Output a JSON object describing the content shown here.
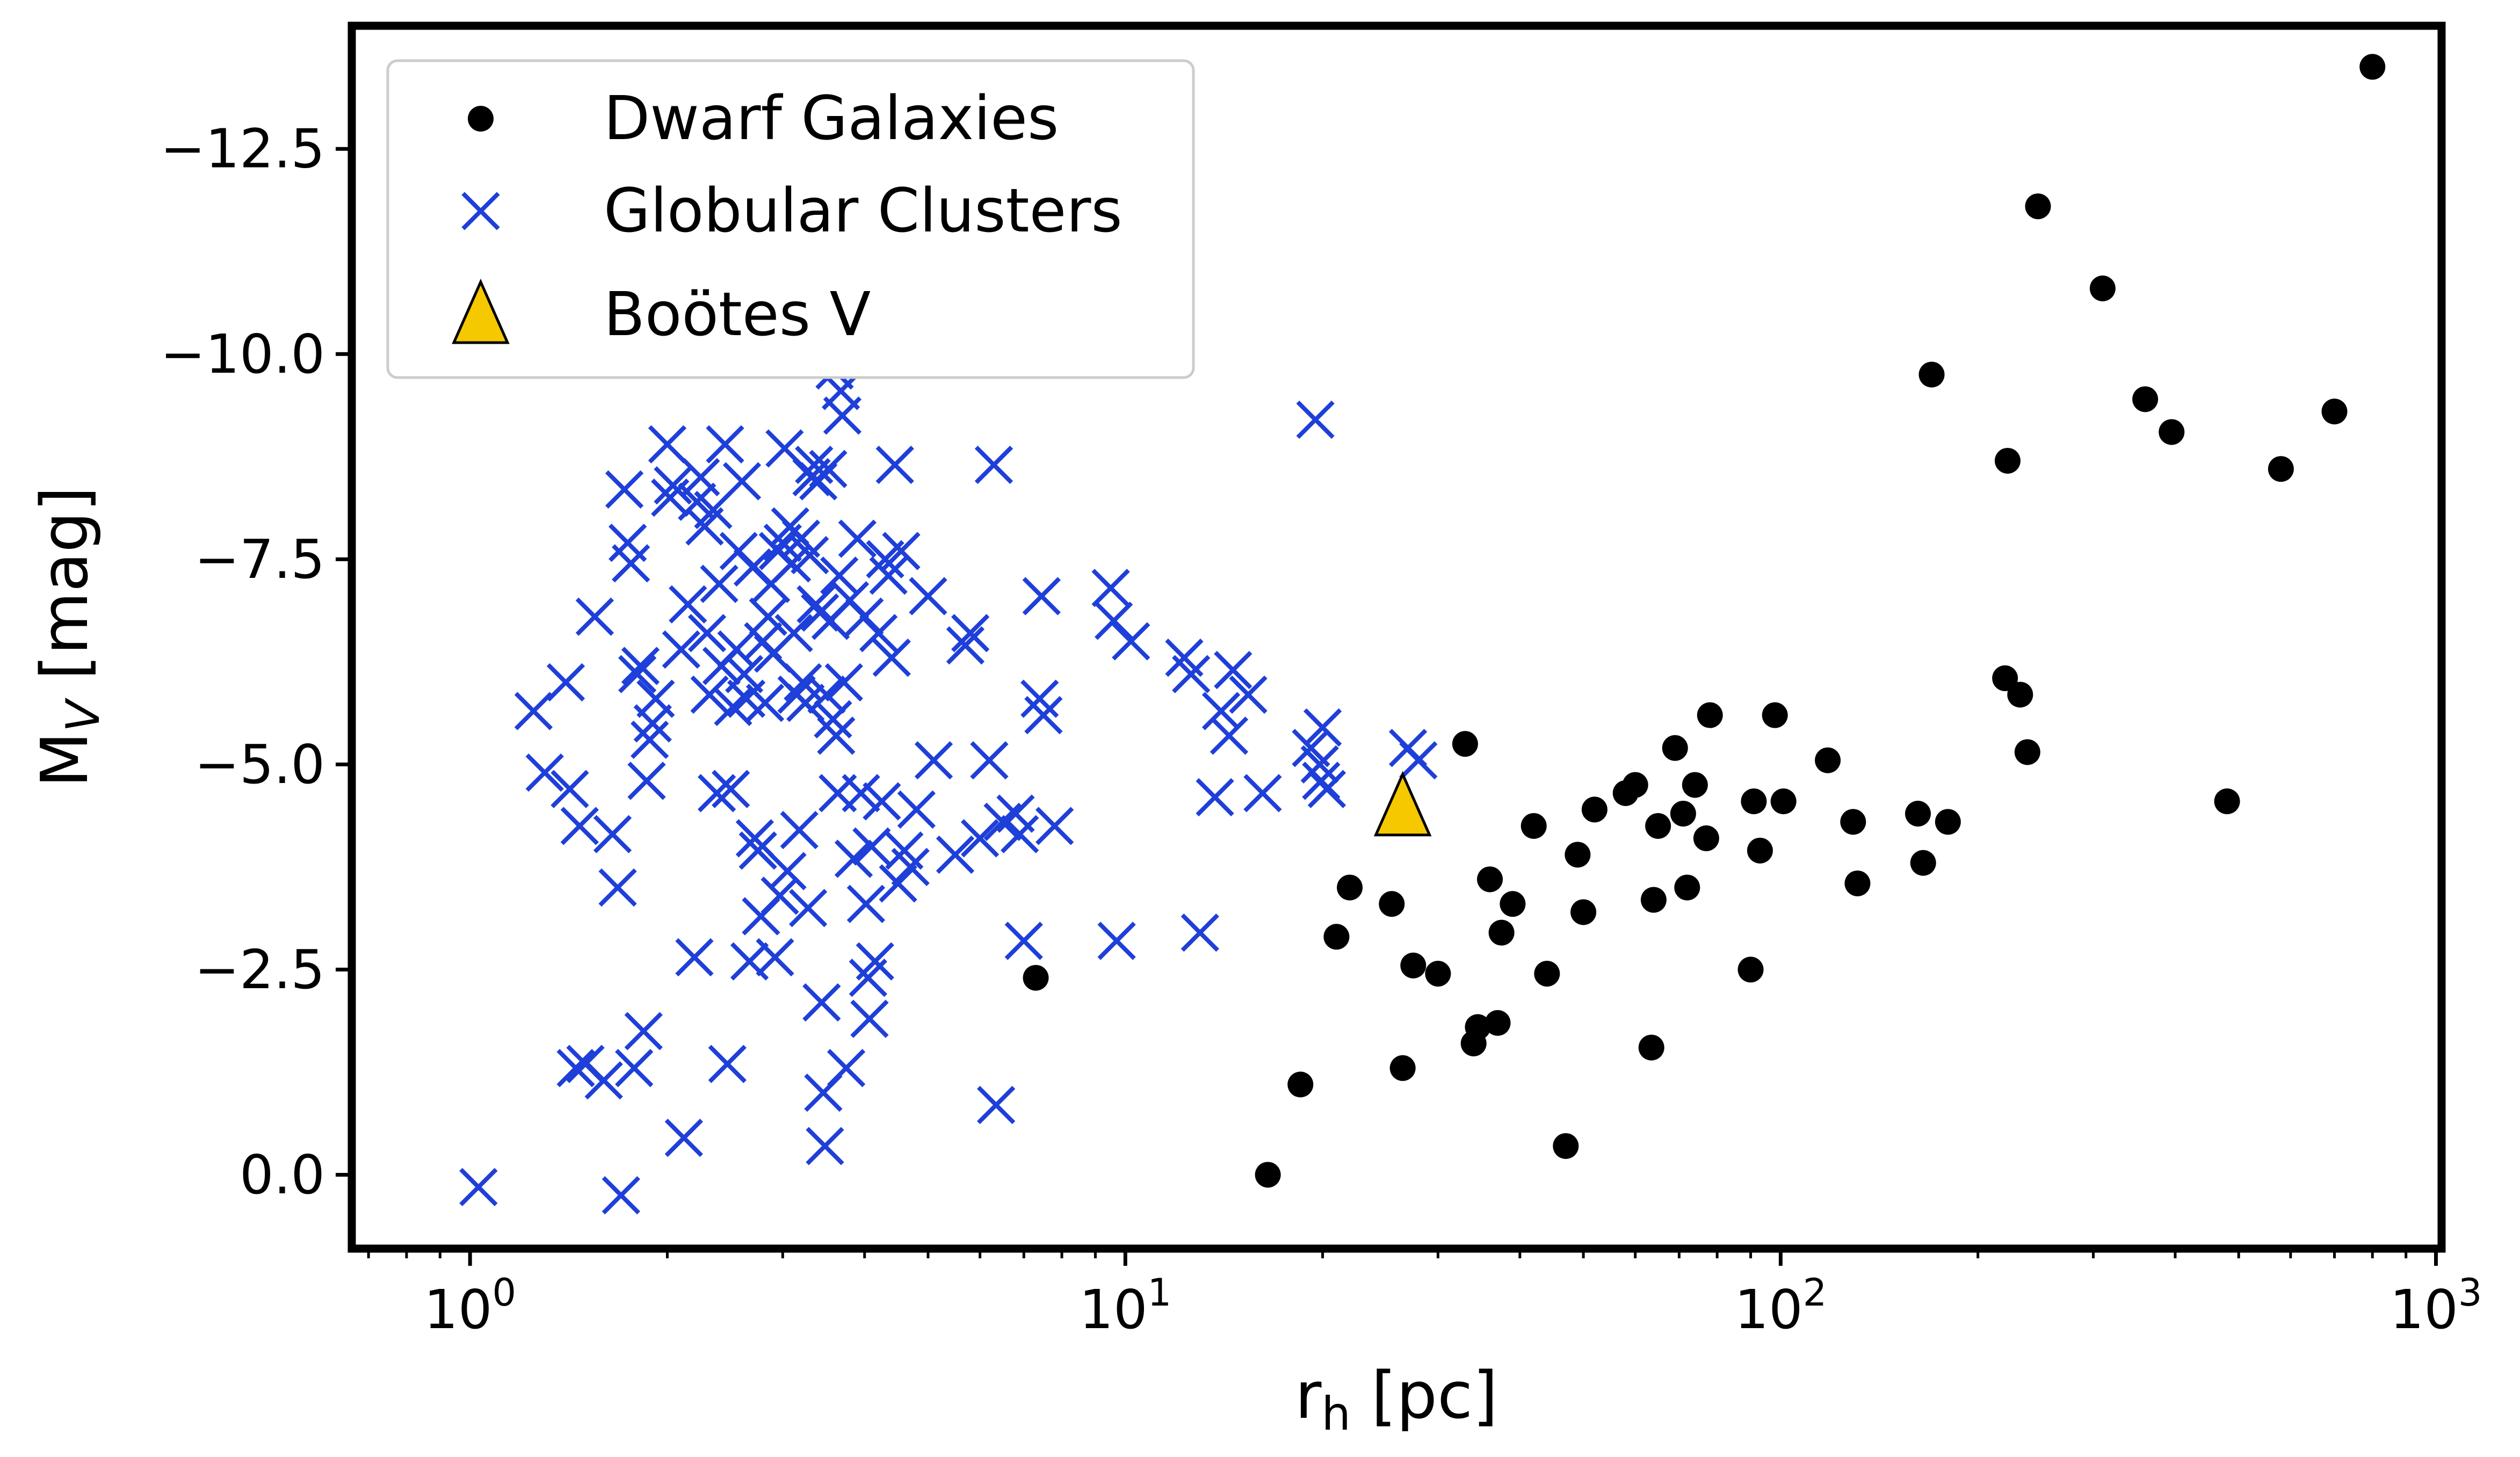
{
  "chart_data": {
    "type": "scatter",
    "title": "",
    "xlabel": "r",
    "xlabel_sub": "h",
    "xlabel_unit": " [pc]",
    "ylabel": "M",
    "ylabel_sub": "V",
    "ylabel_unit": " [mag]",
    "xscale": "log",
    "xlim": [
      0.66,
      1020
    ],
    "ylim": [
      0.9,
      -14.0
    ],
    "y_inverted": true,
    "xticks": [
      {
        "value": 1,
        "base": "10",
        "exp": "0"
      },
      {
        "value": 10,
        "base": "10",
        "exp": "1"
      },
      {
        "value": 100,
        "base": "10",
        "exp": "2"
      },
      {
        "value": 1000,
        "base": "10",
        "exp": "3"
      }
    ],
    "yticks": [
      {
        "value": -12.5,
        "label": "−12.5"
      },
      {
        "value": -10.0,
        "label": "−10.0"
      },
      {
        "value": -7.5,
        "label": "−7.5"
      },
      {
        "value": -5.0,
        "label": "−5.0"
      },
      {
        "value": -2.5,
        "label": "−2.5"
      },
      {
        "value": 0.0,
        "label": "0.0"
      }
    ],
    "grid": false,
    "legend_position": "top-left",
    "colors": {
      "dwarf": "#000000",
      "globular": "#1f3fd9",
      "bootes": "#f5c800",
      "axes": "#000000"
    },
    "series": [
      {
        "name": "Dwarf Galaxies",
        "marker": "circle",
        "points": [
          [
            7.3,
            -2.4
          ],
          [
            16.5,
            0.0
          ],
          [
            18.5,
            -1.1
          ],
          [
            21,
            -2.9
          ],
          [
            22,
            -3.5
          ],
          [
            25.5,
            -3.3
          ],
          [
            26.5,
            -1.3
          ],
          [
            27.5,
            -2.55
          ],
          [
            30,
            -2.45
          ],
          [
            33,
            -5.25
          ],
          [
            34,
            -1.6
          ],
          [
            34.5,
            -1.8
          ],
          [
            36,
            -3.6
          ],
          [
            37,
            -1.85
          ],
          [
            37.5,
            -2.95
          ],
          [
            39,
            -3.3
          ],
          [
            42,
            -4.25
          ],
          [
            44,
            -2.45
          ],
          [
            47,
            -0.35
          ],
          [
            49,
            -3.9
          ],
          [
            50,
            -3.2
          ],
          [
            52,
            -4.45
          ],
          [
            58,
            -4.65
          ],
          [
            60,
            -4.75
          ],
          [
            63.5,
            -1.55
          ],
          [
            64,
            -3.35
          ],
          [
            65,
            -4.25
          ],
          [
            69,
            -5.2
          ],
          [
            71,
            -4.4
          ],
          [
            72,
            -3.5
          ],
          [
            74,
            -4.75
          ],
          [
            77,
            -4.1
          ],
          [
            78,
            -5.6
          ],
          [
            90,
            -2.5
          ],
          [
            91,
            -4.55
          ],
          [
            93,
            -3.95
          ],
          [
            98,
            -5.6
          ],
          [
            101,
            -4.55
          ],
          [
            118,
            -5.05
          ],
          [
            129,
            -4.3
          ],
          [
            131,
            -3.55
          ],
          [
            162,
            -4.4
          ],
          [
            165,
            -3.8
          ],
          [
            170,
            -9.75
          ],
          [
            180,
            -4.3
          ],
          [
            220,
            -6.05
          ],
          [
            222,
            -8.7
          ],
          [
            232,
            -5.85
          ],
          [
            238,
            -5.15
          ],
          [
            247,
            -11.8
          ],
          [
            310,
            -10.8
          ],
          [
            360,
            -9.45
          ],
          [
            395,
            -9.05
          ],
          [
            480,
            -4.55
          ],
          [
            580,
            -8.6
          ],
          [
            700,
            -9.3
          ],
          [
            800,
            -13.5
          ]
        ]
      },
      {
        "name": "Globular Clusters",
        "marker": "x",
        "points": [
          [
            1.03,
            0.15
          ],
          [
            1.25,
            -5.65
          ],
          [
            1.3,
            -4.9
          ],
          [
            1.4,
            -6.0
          ],
          [
            1.42,
            -4.7
          ],
          [
            1.45,
            -1.3
          ],
          [
            1.47,
            -4.25
          ],
          [
            1.5,
            -1.35
          ],
          [
            1.55,
            -6.8
          ],
          [
            1.6,
            -1.15
          ],
          [
            1.65,
            -4.15
          ],
          [
            1.68,
            -3.5
          ],
          [
            1.7,
            0.25
          ],
          [
            1.72,
            -8.35
          ],
          [
            1.74,
            -7.7
          ],
          [
            1.76,
            -7.45
          ],
          [
            1.78,
            -1.3
          ],
          [
            1.8,
            -6.1
          ],
          [
            1.82,
            -6.2
          ],
          [
            1.84,
            -1.75
          ],
          [
            1.86,
            -4.8
          ],
          [
            1.88,
            -5.3
          ],
          [
            1.9,
            -5.5
          ],
          [
            1.92,
            -5.8
          ],
          [
            2.0,
            -8.9
          ],
          [
            2.02,
            -8.25
          ],
          [
            2.04,
            -8.4
          ],
          [
            2.1,
            -6.4
          ],
          [
            2.12,
            -0.45
          ],
          [
            2.15,
            -6.95
          ],
          [
            2.2,
            -2.65
          ],
          [
            2.22,
            -8.2
          ],
          [
            2.25,
            -8.5
          ],
          [
            2.28,
            -7.9
          ],
          [
            2.3,
            -6.6
          ],
          [
            2.32,
            -5.85
          ],
          [
            2.35,
            -8.1
          ],
          [
            2.38,
            -4.65
          ],
          [
            2.4,
            -7.2
          ],
          [
            2.42,
            -6.2
          ],
          [
            2.45,
            -8.9
          ],
          [
            2.47,
            -1.35
          ],
          [
            2.5,
            -4.7
          ],
          [
            2.52,
            -5.7
          ],
          [
            2.55,
            -6.4
          ],
          [
            2.57,
            -7.6
          ],
          [
            2.6,
            -8.45
          ],
          [
            2.62,
            -6.1
          ],
          [
            2.64,
            -5.8
          ],
          [
            2.67,
            -2.6
          ],
          [
            2.7,
            -7.4
          ],
          [
            2.72,
            -4.1
          ],
          [
            2.75,
            -3.95
          ],
          [
            2.78,
            -3.15
          ],
          [
            2.8,
            -6.5
          ],
          [
            2.82,
            -5.75
          ],
          [
            2.85,
            -6.8
          ],
          [
            2.88,
            -7.2
          ],
          [
            2.9,
            -6.35
          ],
          [
            2.92,
            -2.65
          ],
          [
            2.95,
            -7.6
          ],
          [
            2.97,
            -3.4
          ],
          [
            3.0,
            -7.7
          ],
          [
            3.02,
            -8.85
          ],
          [
            3.05,
            -3.7
          ],
          [
            3.08,
            -7.9
          ],
          [
            3.1,
            -7.45
          ],
          [
            3.12,
            -6.6
          ],
          [
            3.15,
            -5.85
          ],
          [
            3.18,
            -4.2
          ],
          [
            3.2,
            -7.75
          ],
          [
            3.22,
            -6.0
          ],
          [
            3.25,
            -5.75
          ],
          [
            3.28,
            -3.25
          ],
          [
            3.3,
            -7.55
          ],
          [
            3.32,
            -8.5
          ],
          [
            3.35,
            -8.65
          ],
          [
            3.37,
            -6.95
          ],
          [
            3.4,
            -8.45
          ],
          [
            3.42,
            -6.85
          ],
          [
            3.44,
            -2.1
          ],
          [
            3.46,
            -1.0
          ],
          [
            3.48,
            -0.35
          ],
          [
            3.5,
            -5.85
          ],
          [
            3.52,
            -8.6
          ],
          [
            3.55,
            -6.75
          ],
          [
            3.58,
            -5.55
          ],
          [
            3.6,
            -9.8
          ],
          [
            3.62,
            -5.35
          ],
          [
            3.64,
            -4.65
          ],
          [
            3.66,
            -7.3
          ],
          [
            3.68,
            -9.55
          ],
          [
            3.7,
            -9.25
          ],
          [
            3.72,
            -6.0
          ],
          [
            3.75,
            -1.3
          ],
          [
            3.8,
            -7.0
          ],
          [
            3.85,
            -3.85
          ],
          [
            3.9,
            -7.75
          ],
          [
            3.95,
            -4.65
          ],
          [
            4.0,
            -6.8
          ],
          [
            4.02,
            -3.3
          ],
          [
            4.05,
            -2.4
          ],
          [
            4.07,
            -1.9
          ],
          [
            4.1,
            -4.0
          ],
          [
            4.15,
            -2.6
          ],
          [
            4.2,
            -6.6
          ],
          [
            4.25,
            -4.55
          ],
          [
            4.3,
            -7.5
          ],
          [
            4.35,
            -7.3
          ],
          [
            4.4,
            -6.3
          ],
          [
            4.45,
            -8.65
          ],
          [
            4.5,
            -3.55
          ],
          [
            4.55,
            -7.6
          ],
          [
            4.6,
            -3.95
          ],
          [
            4.7,
            -3.75
          ],
          [
            4.8,
            -4.45
          ],
          [
            5.0,
            -7.05
          ],
          [
            5.1,
            -5.05
          ],
          [
            5.5,
            -3.9
          ],
          [
            5.7,
            -6.45
          ],
          [
            5.8,
            -6.6
          ],
          [
            6.0,
            -4.1
          ],
          [
            6.2,
            -5.05
          ],
          [
            6.3,
            -8.65
          ],
          [
            6.35,
            -0.85
          ],
          [
            6.5,
            -4.3
          ],
          [
            6.8,
            -4.4
          ],
          [
            6.9,
            -4.15
          ],
          [
            7.0,
            -2.85
          ],
          [
            7.4,
            -5.8
          ],
          [
            7.45,
            -7.05
          ],
          [
            7.5,
            -5.6
          ],
          [
            7.7,
            -10.25
          ],
          [
            7.8,
            -4.25
          ],
          [
            9.5,
            -7.15
          ],
          [
            9.6,
            -6.75
          ],
          [
            9.7,
            -2.85
          ],
          [
            10.2,
            -6.5
          ],
          [
            12.3,
            -6.3
          ],
          [
            12.6,
            -6.1
          ],
          [
            13.0,
            -2.95
          ],
          [
            13.7,
            -4.6
          ],
          [
            14.0,
            -5.65
          ],
          [
            14.4,
            -5.35
          ],
          [
            14.6,
            -6.15
          ],
          [
            15.4,
            -5.85
          ],
          [
            16.2,
            -4.65
          ],
          [
            19.2,
            -5.2
          ],
          [
            19.5,
            -9.2
          ],
          [
            19.8,
            -5.0
          ],
          [
            19.9,
            -4.8
          ],
          [
            20.0,
            -5.45
          ],
          [
            20.3,
            -4.7
          ],
          [
            27.0,
            -5.2
          ],
          [
            28.0,
            -5.05
          ]
        ]
      },
      {
        "name": "Boötes V",
        "marker": "triangle",
        "points": [
          [
            26.5,
            -4.5
          ]
        ]
      }
    ]
  }
}
